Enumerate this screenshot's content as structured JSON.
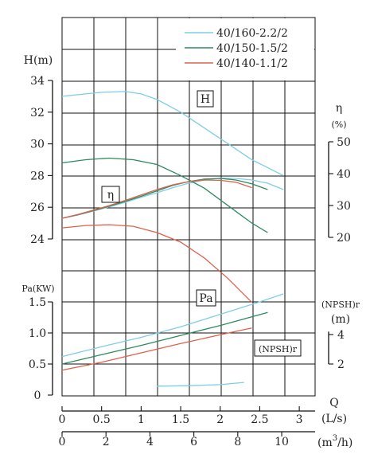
{
  "chart_data": {
    "type": "line",
    "legend_position": "top-right",
    "series": [
      {
        "name": "40/160-2.2/2",
        "color": "#7ecde6",
        "H": {
          "x": [
            0,
            0.2,
            0.5,
            0.8,
            1.0,
            1.2,
            1.5,
            1.8,
            2.1,
            2.4,
            2.6,
            2.8
          ],
          "y": [
            33.0,
            33.1,
            33.25,
            33.3,
            33.15,
            32.8,
            32.0,
            31.0,
            30.0,
            29.0,
            28.5,
            28.0
          ]
        },
        "eta": {
          "x": [
            0,
            0.2,
            0.4,
            0.6,
            0.8,
            1.0,
            1.2,
            1.4,
            1.6,
            1.8,
            2.0,
            2.2,
            2.4,
            2.6,
            2.8
          ],
          "y": [
            26.0,
            27.0,
            28.3,
            29.6,
            31.0,
            32.6,
            34.0,
            35.6,
            37.0,
            38.0,
            38.6,
            38.5,
            38.0,
            37.0,
            35.0
          ]
        },
        "Pa": {
          "x": [
            0,
            0.5,
            1.0,
            1.5,
            2.0,
            2.5,
            2.8
          ],
          "y": [
            0.62,
            0.78,
            0.93,
            1.1,
            1.3,
            1.5,
            1.63
          ]
        },
        "NPSH": {
          "x": [
            1.2,
            1.6,
            2.0,
            2.3
          ],
          "y": [
            0.5,
            0.53,
            0.6,
            0.75
          ]
        }
      },
      {
        "name": "40/150-1.5/2",
        "color": "#2c8a5e",
        "H": {
          "x": [
            0,
            0.3,
            0.6,
            0.9,
            1.2,
            1.5,
            1.8,
            2.1,
            2.4,
            2.6
          ],
          "y": [
            28.8,
            29.0,
            29.1,
            29.0,
            28.7,
            28.0,
            27.2,
            26.1,
            25.0,
            24.4
          ]
        },
        "eta": {
          "x": [
            0,
            0.2,
            0.4,
            0.6,
            0.8,
            1.0,
            1.2,
            1.4,
            1.6,
            1.8,
            2.0,
            2.2,
            2.4,
            2.6
          ],
          "y": [
            26.0,
            27.1,
            28.4,
            29.8,
            31.3,
            32.9,
            34.6,
            36.3,
            37.5,
            38.3,
            38.5,
            38.0,
            36.8,
            35.0
          ]
        },
        "Pa": {
          "x": [
            0,
            0.5,
            1.0,
            1.5,
            2.0,
            2.6
          ],
          "y": [
            0.5,
            0.65,
            0.8,
            0.96,
            1.12,
            1.33
          ]
        }
      },
      {
        "name": "40/140-1.1/2",
        "color": "#e0604a",
        "H": {
          "x": [
            0,
            0.3,
            0.6,
            0.9,
            1.2,
            1.5,
            1.8,
            2.1,
            2.4
          ],
          "y": [
            24.7,
            24.85,
            24.9,
            24.8,
            24.4,
            23.8,
            22.8,
            21.5,
            20.0
          ]
        },
        "eta": {
          "x": [
            0,
            0.2,
            0.4,
            0.6,
            0.8,
            1.0,
            1.2,
            1.4,
            1.6,
            1.8,
            2.0,
            2.2,
            2.4
          ],
          "y": [
            26.0,
            27.2,
            28.6,
            30.0,
            31.6,
            33.3,
            35.0,
            36.5,
            37.5,
            38.0,
            37.9,
            37.3,
            35.6
          ]
        },
        "Pa": {
          "x": [
            0,
            0.5,
            1.0,
            1.5,
            2.0,
            2.4
          ],
          "y": [
            0.4,
            0.53,
            0.68,
            0.83,
            0.97,
            1.08
          ]
        }
      }
    ],
    "axes": {
      "x_ls": {
        "label": "(L/s)",
        "title": "Q",
        "range": [
          0,
          3.2
        ],
        "ticks": [
          0,
          0.5,
          1,
          1.5,
          2,
          2.5,
          3
        ],
        "tick_labels": [
          "0",
          "0.5",
          "1",
          "1.5",
          "2",
          "2.5",
          "3"
        ]
      },
      "x_m3h": {
        "label_parts": [
          "(m",
          "3",
          "/h)"
        ],
        "range": [
          0,
          11.52
        ],
        "ticks": [
          0,
          2,
          4,
          6,
          8,
          10
        ],
        "tick_labels": [
          "0",
          "2",
          "4",
          "6",
          "8",
          "10"
        ]
      },
      "H": {
        "label": "H(m)",
        "range": [
          24,
          34
        ],
        "ticks": [
          24,
          26,
          28,
          30,
          32,
          34
        ]
      },
      "eta": {
        "label_lines": [
          "η",
          "(%)"
        ],
        "ticks": [
          20,
          30,
          40,
          50
        ]
      },
      "Pa": {
        "label": "Pa(KW)",
        "range": [
          0,
          1.5
        ],
        "ticks": [
          0,
          0.5,
          1.0,
          1.5
        ],
        "tick_labels": [
          "0",
          "0.5",
          "1.0",
          "1.5"
        ]
      },
      "npsh": {
        "label_lines": [
          "(NPSH)r",
          "(m)"
        ],
        "ticks": [
          2,
          4
        ]
      }
    },
    "annotations": {
      "H": "H",
      "eta": "η",
      "Pa": "Pa",
      "npsh": "(NPSH)r"
    }
  }
}
